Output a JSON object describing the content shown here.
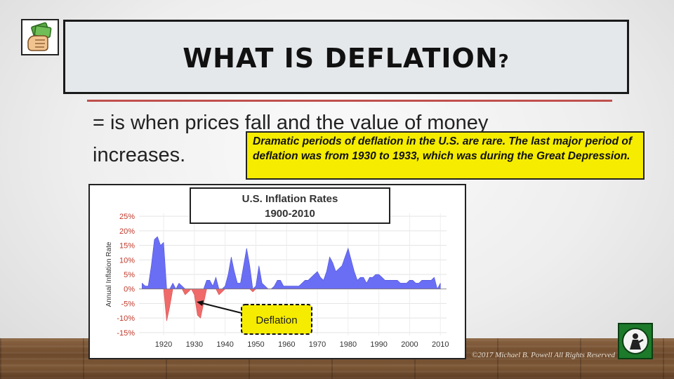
{
  "slide": {
    "title": "WHAT IS DEFLATION",
    "title_suffix": "?",
    "body": "= is when prices fall and the value of money increases.",
    "callout": "Dramatic periods of deflation in the U.S. are rare. The last major period of deflation was from 1930 to 1933, which was during the Great Depression.",
    "copyright": "©2017 Michael B. Powell All Rights Reserved",
    "icon": "money-hand-icon",
    "logo": "green-badge-logo-icon",
    "colors": {
      "accent_rule": "#c0504d",
      "callout_bg": "#f5ec00",
      "title_box_bg": "#e5e8eb"
    }
  },
  "chart_data": {
    "type": "area",
    "title_line1": "U.S. Inflation Rates",
    "title_line2": "1900-2010",
    "ylabel": "Annual Inflation Rate",
    "xlabel": "",
    "xlim": [
      1912,
      2012
    ],
    "ylim": [
      -16,
      26
    ],
    "x_ticks": [
      "1920",
      "1930",
      "1940",
      "1950",
      "1960",
      "1970",
      "1980",
      "1990",
      "2000",
      "2010"
    ],
    "y_ticks": [
      "25%",
      "20%",
      "15%",
      "10%",
      "5%",
      "0%",
      "-5%",
      "-10%",
      "-15%"
    ],
    "grid": true,
    "annotation": "Deflation",
    "colors": {
      "positive": "#6a6ef5",
      "negative": "#f06a6a"
    },
    "x": [
      1913,
      1914,
      1915,
      1916,
      1917,
      1918,
      1919,
      1920,
      1921,
      1922,
      1923,
      1924,
      1925,
      1926,
      1927,
      1928,
      1929,
      1930,
      1931,
      1932,
      1933,
      1934,
      1935,
      1936,
      1937,
      1938,
      1939,
      1940,
      1941,
      1942,
      1943,
      1944,
      1945,
      1946,
      1947,
      1948,
      1949,
      1950,
      1951,
      1952,
      1953,
      1954,
      1955,
      1956,
      1957,
      1958,
      1959,
      1960,
      1961,
      1962,
      1963,
      1964,
      1965,
      1966,
      1967,
      1968,
      1969,
      1970,
      1971,
      1972,
      1973,
      1974,
      1975,
      1976,
      1977,
      1978,
      1979,
      1980,
      1981,
      1982,
      1983,
      1984,
      1985,
      1986,
      1987,
      1988,
      1989,
      1990,
      1991,
      1992,
      1993,
      1994,
      1995,
      1996,
      1997,
      1998,
      1999,
      2000,
      2001,
      2002,
      2003,
      2004,
      2005,
      2006,
      2007,
      2008,
      2009,
      2010
    ],
    "values": [
      2,
      1,
      1,
      8,
      17,
      18,
      15,
      16,
      -11,
      -6,
      2,
      0,
      2,
      1,
      -2,
      -1,
      0,
      -2,
      -9,
      -10,
      -5,
      3,
      3,
      1,
      4,
      -2,
      -1,
      1,
      5,
      11,
      6,
      2,
      2,
      8,
      14,
      8,
      -1,
      1,
      8,
      2,
      1,
      0,
      0,
      1,
      3,
      3,
      1,
      1,
      1,
      1,
      1,
      1,
      2,
      3,
      3,
      4,
      5,
      6,
      4,
      3,
      6,
      11,
      9,
      6,
      7,
      8,
      11,
      14,
      10,
      6,
      3,
      4,
      4,
      2,
      4,
      4,
      5,
      5,
      4,
      3,
      3,
      3,
      3,
      3,
      2,
      2,
      2,
      3,
      3,
      2,
      2,
      3,
      3,
      3,
      3,
      4,
      0,
      2
    ]
  }
}
